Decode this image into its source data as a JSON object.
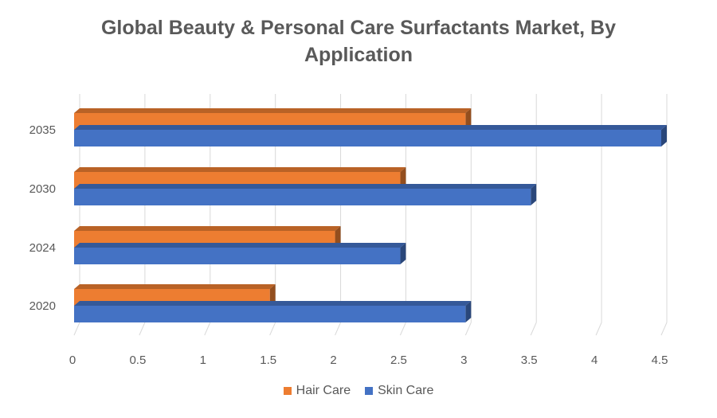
{
  "chart_data": {
    "type": "bar",
    "orientation": "horizontal",
    "style": "3d-clustered",
    "title_line1": "Global Beauty & Personal Care Surfactants Market, By",
    "title_line2": "Application",
    "categories": [
      "2020",
      "2024",
      "2030",
      "2035"
    ],
    "series": [
      {
        "name": "Hair Care",
        "color": "#ED7D31",
        "values": [
          1.5,
          2.0,
          2.5,
          3.0
        ]
      },
      {
        "name": "Skin Care",
        "color": "#4472C4",
        "values": [
          3.0,
          2.5,
          3.5,
          4.5
        ]
      }
    ],
    "xlim": [
      0,
      4.5
    ],
    "x_ticks": [
      "0",
      "0.5",
      "1",
      "1.5",
      "2",
      "2.5",
      "3",
      "3.5",
      "4",
      "4.5"
    ],
    "grid": true,
    "legend_position": "bottom"
  }
}
